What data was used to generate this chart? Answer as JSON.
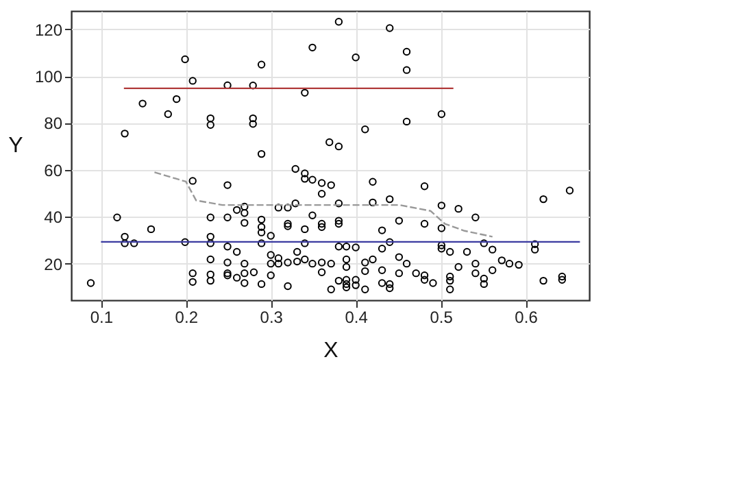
{
  "chart_data": {
    "type": "scatter",
    "xlabel": "X",
    "ylabel": "Y",
    "xlim": [
      0.065,
      0.675
    ],
    "ylim": [
      4.4,
      127.8
    ],
    "xticks": [
      0.1,
      0.2,
      0.3,
      0.4,
      0.5,
      0.6
    ],
    "yticks": [
      20,
      40,
      60,
      80,
      100,
      120
    ],
    "grid": true,
    "series": [
      {
        "color": "#000000",
        "marker": "circle",
        "x": [
          0.199,
          0.289,
          0.208,
          0.249,
          0.279,
          0.149,
          0.189,
          0.179,
          0.229,
          0.229,
          0.279,
          0.279,
          0.128,
          0.289,
          0.38,
          0.44,
          0.349,
          0.4,
          0.46,
          0.46,
          0.34,
          0.501,
          0.46,
          0.411,
          0.369,
          0.38,
          0.329,
          0.208,
          0.249,
          0.119,
          0.159,
          0.128,
          0.128,
          0.139,
          0.199,
          0.229,
          0.229,
          0.229,
          0.249,
          0.26,
          0.269,
          0.269,
          0.269,
          0.289,
          0.289,
          0.289,
          0.3,
          0.289,
          0.309,
          0.32,
          0.329,
          0.32,
          0.32,
          0.331,
          0.249,
          0.26,
          0.229,
          0.249,
          0.269,
          0.3,
          0.3,
          0.309,
          0.309,
          0.32,
          0.331,
          0.208,
          0.208,
          0.229,
          0.229,
          0.249,
          0.249,
          0.26,
          0.269,
          0.28,
          0.269,
          0.289,
          0.3,
          0.32,
          0.088,
          0.34,
          0.34,
          0.349,
          0.36,
          0.371,
          0.36,
          0.42,
          0.481,
          0.38,
          0.42,
          0.44,
          0.501,
          0.521,
          0.541,
          0.621,
          0.652,
          0.349,
          0.34,
          0.36,
          0.36,
          0.38,
          0.38,
          0.451,
          0.431,
          0.481,
          0.501,
          0.34,
          0.38,
          0.389,
          0.4,
          0.44,
          0.431,
          0.501,
          0.501,
          0.511,
          0.531,
          0.551,
          0.561,
          0.611,
          0.611,
          0.34,
          0.349,
          0.36,
          0.371,
          0.36,
          0.389,
          0.389,
          0.411,
          0.42,
          0.431,
          0.451,
          0.46,
          0.411,
          0.451,
          0.471,
          0.481,
          0.481,
          0.491,
          0.511,
          0.511,
          0.511,
          0.521,
          0.541,
          0.541,
          0.551,
          0.551,
          0.561,
          0.572,
          0.581,
          0.592,
          0.621,
          0.643,
          0.643,
          0.38,
          0.389,
          0.389,
          0.389,
          0.4,
          0.4,
          0.411,
          0.371,
          0.431,
          0.44,
          0.44
        ],
        "values": [
          107.2,
          104.9,
          98,
          96.1,
          96,
          88.3,
          90.2,
          83.8,
          82,
          79.2,
          82,
          79.6,
          75.5,
          66.8,
          123.2,
          120.5,
          112.2,
          108,
          110.4,
          102.6,
          92.9,
          83.8,
          80.6,
          77.3,
          71.8,
          70,
          60.4,
          55.3,
          53.5,
          39.7,
          34.7,
          31.5,
          28.7,
          28.7,
          29.2,
          39.7,
          31.5,
          28.7,
          39.7,
          42.9,
          44.3,
          41.6,
          37.4,
          38.8,
          35.6,
          33.3,
          31.9,
          28.7,
          43.9,
          43.9,
          45.7,
          37,
          36,
          25,
          27.3,
          25,
          21.8,
          20.5,
          20,
          23.7,
          20,
          22.3,
          20,
          20.5,
          20.9,
          15.9,
          12.2,
          15.4,
          12.7,
          15.9,
          15,
          14,
          15.9,
          16.3,
          11.7,
          11.3,
          15,
          10.4,
          11.7,
          58.5,
          56.2,
          55.8,
          54.4,
          53.5,
          49.8,
          54.9,
          53,
          45.7,
          46.1,
          47.5,
          44.8,
          43.4,
          39.7,
          47.5,
          51.2,
          40.6,
          34.7,
          37,
          35.6,
          38.3,
          37,
          38.3,
          34.2,
          37,
          35.1,
          28.7,
          27.3,
          27.3,
          26.9,
          29.2,
          26.4,
          27.8,
          26.4,
          25,
          25,
          28.7,
          26,
          28.3,
          26,
          21.8,
          20,
          20.5,
          20,
          16.3,
          21.8,
          18.6,
          20.5,
          21.8,
          17.2,
          22.8,
          20,
          16.8,
          15.9,
          15.9,
          15,
          13.1,
          11.7,
          14.5,
          12.7,
          9,
          18.6,
          20,
          15.9,
          13.6,
          11.3,
          17.2,
          21.4,
          20,
          19.5,
          12.7,
          14.5,
          13.1,
          12.7,
          13.1,
          11.3,
          9.9,
          13.1,
          10.8,
          9,
          9,
          11.7,
          11.3,
          9.5
        ]
      },
      {
        "type": "line",
        "color": "#b03a3a",
        "line_style": "solid",
        "x": [
          0.127,
          0.515
        ],
        "values": [
          94.8,
          94.8
        ]
      },
      {
        "type": "line",
        "color": "#3a3aa0",
        "line_style": "solid",
        "x": [
          0.1,
          0.664
        ],
        "values": [
          29.3,
          29.3
        ]
      },
      {
        "type": "line",
        "color": "#999999",
        "line_style": "dashed",
        "x": [
          0.163,
          0.2,
          0.212,
          0.243,
          0.33,
          0.452,
          0.488,
          0.505,
          0.528,
          0.561
        ],
        "values": [
          59,
          55,
          47,
          45,
          45,
          45,
          42.5,
          37,
          34,
          31.5
        ]
      }
    ]
  }
}
